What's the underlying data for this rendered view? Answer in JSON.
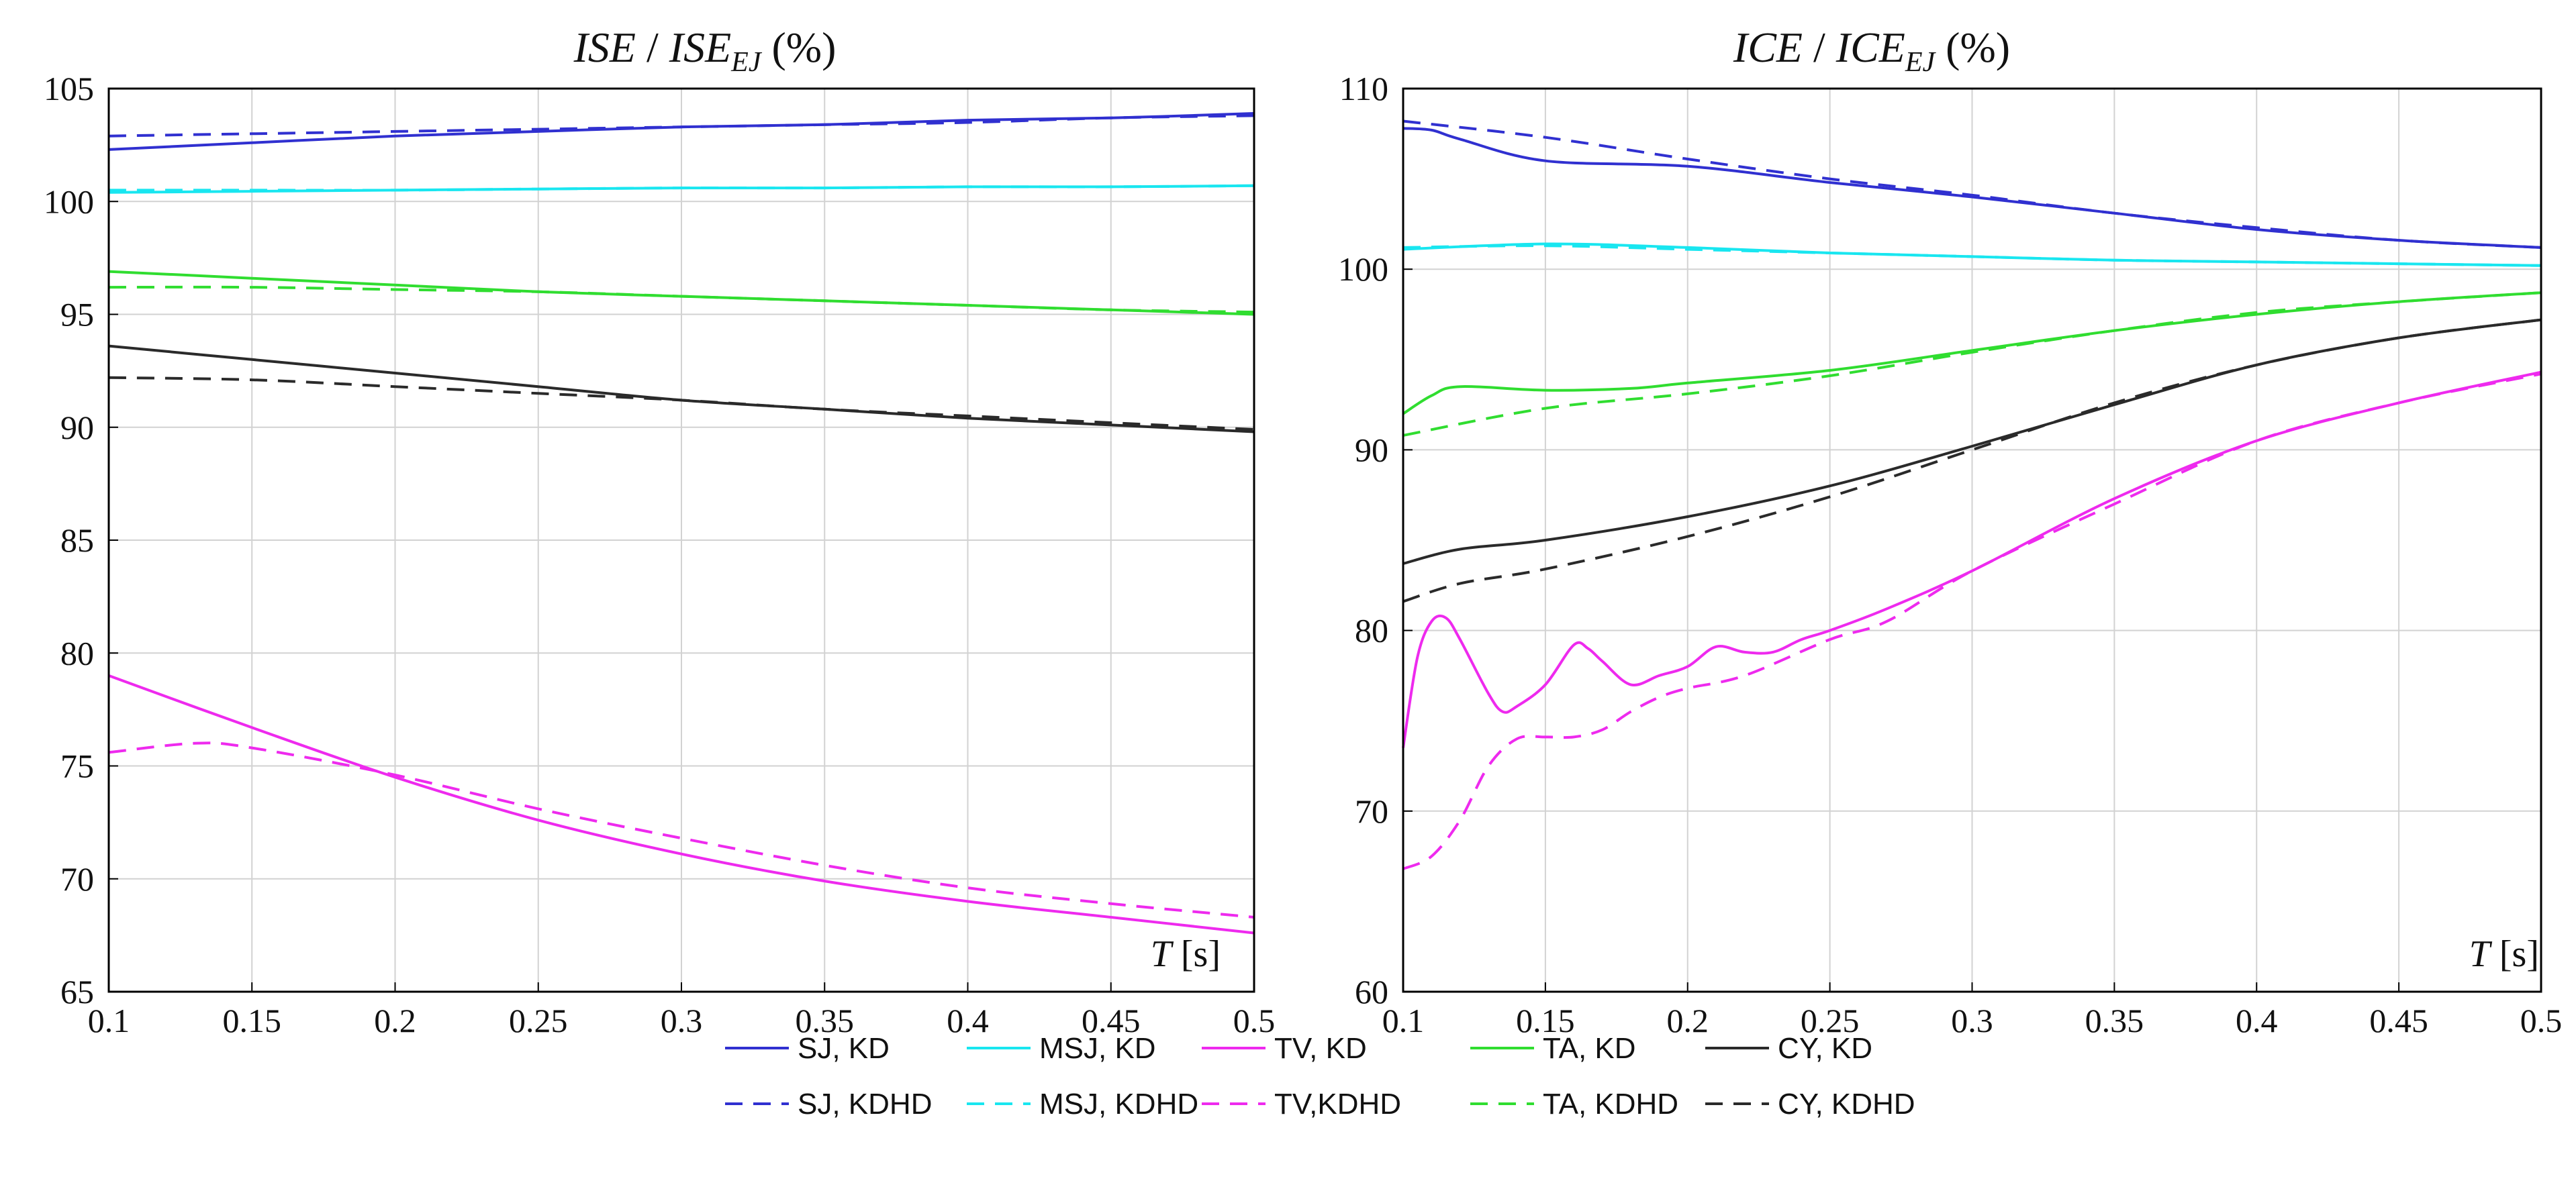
{
  "colors": {
    "SJ": "#3030d0",
    "MSJ": "#19e6f0",
    "TV": "#ee2aee",
    "TA": "#30dd30",
    "CY": "#2a2a2a",
    "grid": "#d2d2d2",
    "axis": "#000000"
  },
  "legend": {
    "items": [
      {
        "label": "SJ, KD",
        "group": "SJ",
        "dash": false
      },
      {
        "label": "MSJ, KD",
        "group": "MSJ",
        "dash": false
      },
      {
        "label": "TV, KD",
        "group": "TV",
        "dash": false
      },
      {
        "label": "TA, KD",
        "group": "TA",
        "dash": false
      },
      {
        "label": "CY, KD",
        "group": "CY",
        "dash": false
      },
      {
        "label": "SJ, KDHD",
        "group": "SJ",
        "dash": true
      },
      {
        "label": "MSJ, KDHD",
        "group": "MSJ",
        "dash": true
      },
      {
        "label": "TV,KDHD",
        "group": "TV",
        "dash": true
      },
      {
        "label": "TA, KDHD",
        "group": "TA",
        "dash": true
      },
      {
        "label": "CY, KDHD",
        "group": "CY",
        "dash": true
      }
    ]
  },
  "chart_data": [
    {
      "type": "line",
      "title": {
        "main1": "ISE",
        "sep": " / ",
        "main2": "ISE",
        "sub": "EJ",
        "unit": " (%)"
      },
      "x_label": {
        "var": "T",
        "unit": " [s]"
      },
      "xlim": [
        0.1,
        0.5
      ],
      "ylim": [
        65,
        105
      ],
      "x_ticks": [
        "0.1",
        "0.15",
        "0.2",
        "0.25",
        "0.3",
        "0.35",
        "0.4",
        "0.45",
        "0.5"
      ],
      "y_ticks": [
        "65",
        "70",
        "75",
        "80",
        "85",
        "90",
        "95",
        "100",
        "105"
      ],
      "grid": true,
      "x": [
        0.1,
        0.15,
        0.2,
        0.25,
        0.3,
        0.35,
        0.4,
        0.45,
        0.5
      ],
      "series": [
        {
          "name": "SJ, KD",
          "group": "SJ",
          "dash": false,
          "x": [
            0.1,
            0.15,
            0.2,
            0.25,
            0.3,
            0.35,
            0.4,
            0.45,
            0.5
          ],
          "values": [
            102.3,
            102.6,
            102.9,
            103.1,
            103.3,
            103.4,
            103.6,
            103.7,
            103.9
          ]
        },
        {
          "name": "SJ, KDHD",
          "group": "SJ",
          "dash": true,
          "x": [
            0.1,
            0.15,
            0.2,
            0.25,
            0.3,
            0.35,
            0.4,
            0.45,
            0.5
          ],
          "values": [
            102.9,
            103.0,
            103.1,
            103.2,
            103.3,
            103.4,
            103.5,
            103.7,
            103.8
          ]
        },
        {
          "name": "MSJ, KD",
          "group": "MSJ",
          "dash": false,
          "x": [
            0.1,
            0.15,
            0.2,
            0.25,
            0.3,
            0.35,
            0.4,
            0.45,
            0.5
          ],
          "values": [
            100.4,
            100.45,
            100.5,
            100.55,
            100.6,
            100.6,
            100.65,
            100.65,
            100.7
          ]
        },
        {
          "name": "MSJ, KDHD",
          "group": "MSJ",
          "dash": true,
          "x": [
            0.1,
            0.15,
            0.2,
            0.25,
            0.3,
            0.35,
            0.4,
            0.45,
            0.5
          ],
          "values": [
            100.5,
            100.5,
            100.5,
            100.55,
            100.6,
            100.6,
            100.65,
            100.65,
            100.7
          ]
        },
        {
          "name": "TA, KD",
          "group": "TA",
          "dash": false,
          "x": [
            0.1,
            0.15,
            0.2,
            0.25,
            0.3,
            0.35,
            0.4,
            0.45,
            0.5
          ],
          "values": [
            96.9,
            96.6,
            96.3,
            96.0,
            95.8,
            95.6,
            95.4,
            95.2,
            95.0
          ]
        },
        {
          "name": "TA, KDHD",
          "group": "TA",
          "dash": true,
          "x": [
            0.1,
            0.15,
            0.2,
            0.25,
            0.3,
            0.35,
            0.4,
            0.45,
            0.5
          ],
          "values": [
            96.2,
            96.2,
            96.1,
            96.0,
            95.8,
            95.6,
            95.4,
            95.2,
            95.1
          ]
        },
        {
          "name": "CY, KD",
          "group": "CY",
          "dash": false,
          "x": [
            0.1,
            0.15,
            0.2,
            0.25,
            0.3,
            0.35,
            0.4,
            0.45,
            0.5
          ],
          "values": [
            93.6,
            93.0,
            92.4,
            91.8,
            91.2,
            90.8,
            90.4,
            90.1,
            89.8
          ]
        },
        {
          "name": "CY, KDHD",
          "group": "CY",
          "dash": true,
          "x": [
            0.1,
            0.15,
            0.2,
            0.25,
            0.3,
            0.35,
            0.4,
            0.45,
            0.5
          ],
          "values": [
            92.2,
            92.1,
            91.8,
            91.5,
            91.2,
            90.8,
            90.5,
            90.2,
            89.9
          ]
        },
        {
          "name": "TV, KD",
          "group": "TV",
          "dash": false,
          "x": [
            0.1,
            0.15,
            0.2,
            0.25,
            0.3,
            0.35,
            0.4,
            0.45,
            0.5
          ],
          "values": [
            79.0,
            76.7,
            74.5,
            72.6,
            71.1,
            69.9,
            69.0,
            68.3,
            67.6
          ]
        },
        {
          "name": "TV, KDHD",
          "group": "TV",
          "dash": true,
          "x": [
            0.1,
            0.13,
            0.15,
            0.2,
            0.25,
            0.3,
            0.35,
            0.4,
            0.45,
            0.5
          ],
          "values": [
            75.6,
            76.0,
            75.8,
            74.6,
            73.1,
            71.8,
            70.6,
            69.6,
            68.9,
            68.3
          ]
        }
      ]
    },
    {
      "type": "line",
      "title": {
        "main1": "ICE",
        "sep": " / ",
        "main2": "ICE",
        "sub": "EJ",
        "unit": " (%)"
      },
      "x_label": {
        "var": "T",
        "unit": " [s]"
      },
      "xlim": [
        0.1,
        0.5
      ],
      "ylim": [
        60,
        110
      ],
      "x_ticks": [
        "0.1",
        "0.15",
        "0.2",
        "0.25",
        "0.3",
        "0.35",
        "0.4",
        "0.45",
        "0.5"
      ],
      "y_ticks": [
        "60",
        "70",
        "80",
        "90",
        "100",
        "110"
      ],
      "grid": true,
      "series": [
        {
          "name": "SJ, KD",
          "group": "SJ",
          "dash": false,
          "x": [
            0.1,
            0.11,
            0.12,
            0.15,
            0.2,
            0.25,
            0.3,
            0.35,
            0.4,
            0.45,
            0.5
          ],
          "values": [
            107.8,
            107.7,
            107.2,
            106.0,
            105.7,
            104.8,
            104.0,
            103.1,
            102.2,
            101.6,
            101.2
          ]
        },
        {
          "name": "SJ, KDHD",
          "group": "SJ",
          "dash": true,
          "x": [
            0.1,
            0.15,
            0.2,
            0.25,
            0.3,
            0.35,
            0.4,
            0.45,
            0.5
          ],
          "values": [
            108.2,
            107.3,
            106.1,
            105.0,
            104.1,
            103.1,
            102.3,
            101.6,
            101.2
          ]
        },
        {
          "name": "MSJ, KD",
          "group": "MSJ",
          "dash": false,
          "x": [
            0.1,
            0.15,
            0.2,
            0.25,
            0.3,
            0.35,
            0.4,
            0.45,
            0.5
          ],
          "values": [
            101.1,
            101.4,
            101.2,
            100.9,
            100.7,
            100.5,
            100.4,
            100.3,
            100.2
          ]
        },
        {
          "name": "MSJ, KDHD",
          "group": "MSJ",
          "dash": true,
          "x": [
            0.1,
            0.15,
            0.2,
            0.25,
            0.3,
            0.35,
            0.4,
            0.45,
            0.5
          ],
          "values": [
            101.2,
            101.3,
            101.1,
            100.9,
            100.7,
            100.5,
            100.4,
            100.3,
            100.2
          ]
        },
        {
          "name": "TA, KD",
          "group": "TA",
          "dash": false,
          "x": [
            0.1,
            0.11,
            0.12,
            0.15,
            0.18,
            0.2,
            0.25,
            0.3,
            0.35,
            0.4,
            0.45,
            0.5
          ],
          "values": [
            92.0,
            93.0,
            93.5,
            93.3,
            93.4,
            93.7,
            94.4,
            95.5,
            96.6,
            97.5,
            98.2,
            98.7
          ]
        },
        {
          "name": "TA, KDHD",
          "group": "TA",
          "dash": true,
          "x": [
            0.1,
            0.15,
            0.2,
            0.25,
            0.3,
            0.35,
            0.4,
            0.45,
            0.5
          ],
          "values": [
            90.8,
            92.3,
            93.1,
            94.1,
            95.4,
            96.6,
            97.6,
            98.2,
            98.7
          ]
        },
        {
          "name": "CY, KD",
          "group": "CY",
          "dash": false,
          "x": [
            0.1,
            0.12,
            0.15,
            0.2,
            0.25,
            0.3,
            0.35,
            0.4,
            0.45,
            0.5
          ],
          "values": [
            83.7,
            84.5,
            85.0,
            86.3,
            88.0,
            90.2,
            92.5,
            94.7,
            96.2,
            97.2
          ]
        },
        {
          "name": "CY, KDHD",
          "group": "CY",
          "dash": true,
          "x": [
            0.1,
            0.12,
            0.15,
            0.2,
            0.25,
            0.3,
            0.35,
            0.4,
            0.45,
            0.5
          ],
          "values": [
            81.6,
            82.6,
            83.4,
            85.2,
            87.4,
            90.0,
            92.6,
            94.7,
            96.2,
            97.2
          ]
        },
        {
          "name": "TV, KD",
          "group": "TV",
          "dash": false,
          "x": [
            0.1,
            0.105,
            0.11,
            0.115,
            0.12,
            0.13,
            0.135,
            0.14,
            0.15,
            0.16,
            0.165,
            0.17,
            0.18,
            0.19,
            0.2,
            0.21,
            0.22,
            0.23,
            0.24,
            0.25,
            0.27,
            0.3,
            0.35,
            0.4,
            0.45,
            0.5
          ],
          "values": [
            73.5,
            78.5,
            80.5,
            80.7,
            79.5,
            76.5,
            75.5,
            75.8,
            77.0,
            79.2,
            79.0,
            78.3,
            77.0,
            77.5,
            78.0,
            79.1,
            78.8,
            78.8,
            79.5,
            80.0,
            81.2,
            83.3,
            87.3,
            90.5,
            92.6,
            94.3
          ]
        },
        {
          "name": "TV, KDHD",
          "group": "TV",
          "dash": true,
          "x": [
            0.1,
            0.11,
            0.12,
            0.13,
            0.14,
            0.15,
            0.16,
            0.17,
            0.18,
            0.19,
            0.2,
            0.22,
            0.25,
            0.27,
            0.3,
            0.35,
            0.4,
            0.45,
            0.5
          ],
          "values": [
            66.8,
            67.5,
            69.5,
            72.5,
            74.0,
            74.1,
            74.1,
            74.5,
            75.5,
            76.3,
            76.8,
            77.5,
            79.5,
            80.5,
            83.3,
            87.0,
            90.5,
            92.6,
            94.2
          ]
        }
      ]
    }
  ]
}
